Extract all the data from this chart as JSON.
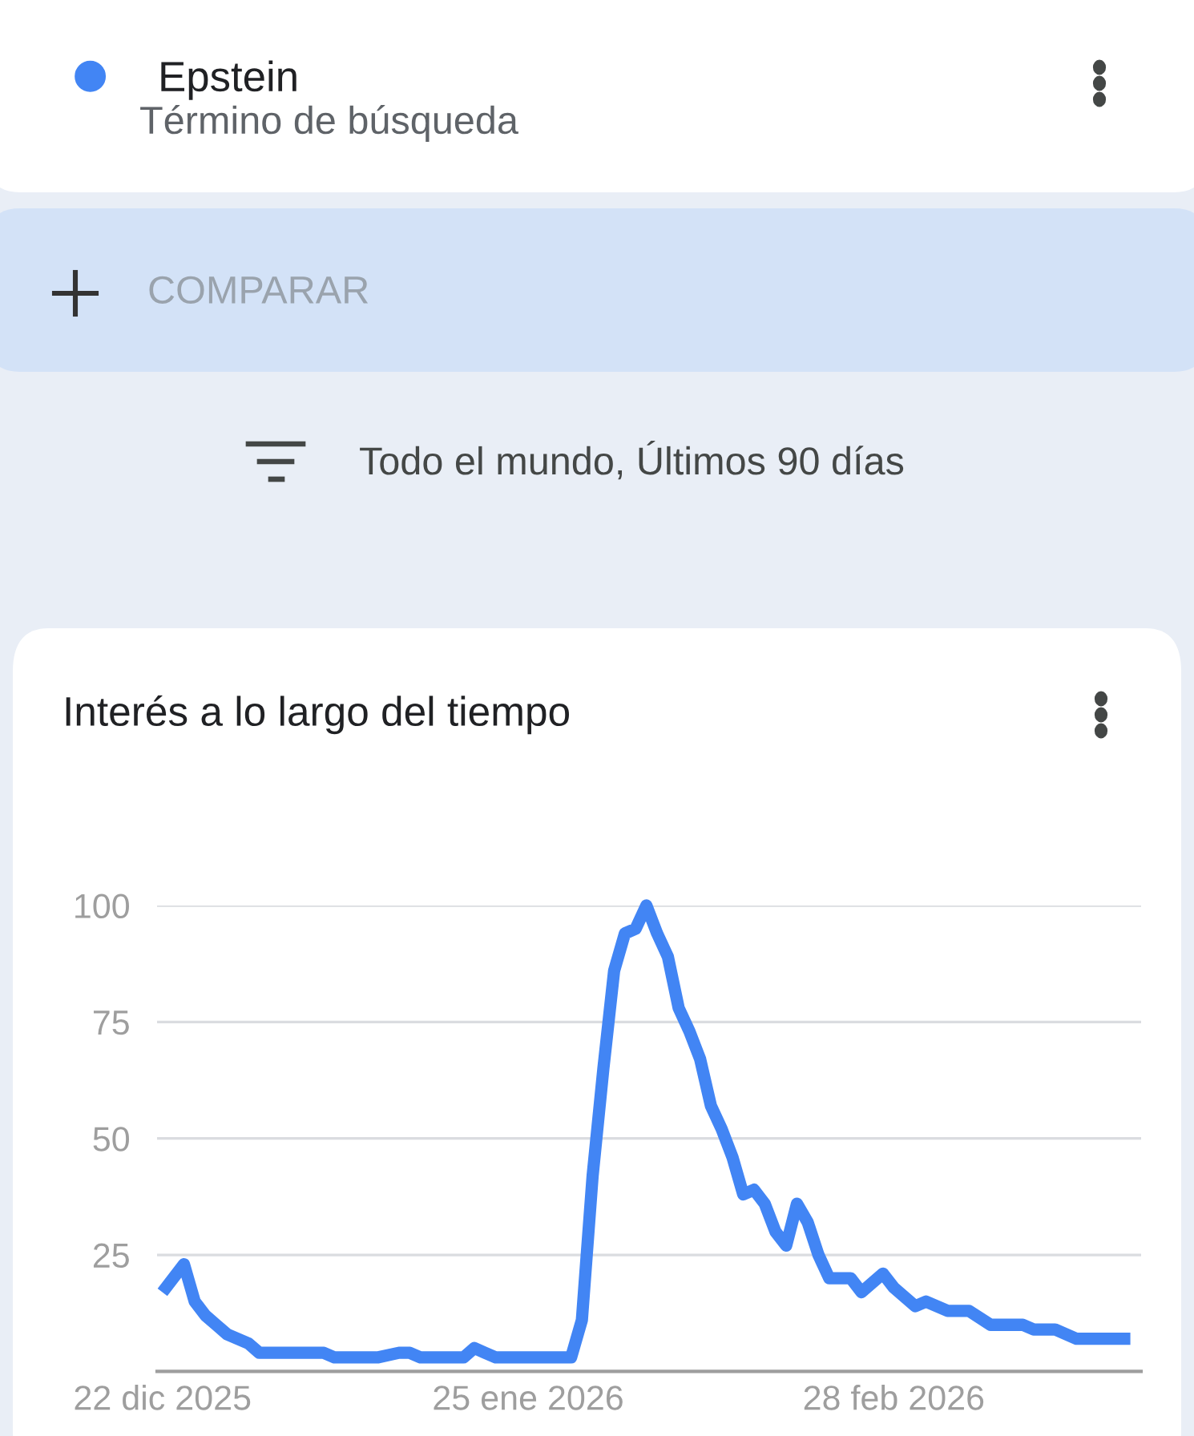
{
  "chart_data": {
    "type": "line",
    "title": "Interés a lo largo del tiempo",
    "annotations": [
      "Término de búsqueda",
      "COMPARAR",
      "Todo el mundo, Últimos 90 días"
    ],
    "legend": "top left",
    "grid": "y",
    "marker": "none",
    "line_style": "solid",
    "xlim": [
      "2025-12-21T12:00",
      "2026-03-23"
    ],
    "xticks": [
      {
        "value": "2025-12-22",
        "label": "22 dic 2025"
      },
      {
        "value": "2026-01-25",
        "label": "25 ene 2026"
      },
      {
        "value": "2026-02-28",
        "label": "28 feb 2026"
      }
    ],
    "ylim": [
      0,
      100
    ],
    "yticks": [
      {
        "value": 0,
        "label": null
      },
      25,
      50,
      75,
      100
    ],
    "series": [
      {
        "name": "Epstein",
        "color": "#4285f4",
        "x": [
          "2025-12-22",
          "2025-12-23",
          "2025-12-24",
          "2025-12-25",
          "2025-12-26",
          "2025-12-27",
          "2025-12-28",
          "2025-12-29",
          "2025-12-30",
          "2025-12-31",
          "2026-01-06",
          "2026-01-07",
          "2026-01-11",
          "2026-01-13",
          "2026-01-14",
          "2026-01-15",
          "2026-01-19",
          "2026-01-20",
          "2026-01-21",
          "2026-01-22",
          "2026-01-29",
          "2026-01-30",
          "2026-01-31",
          "2026-02-01",
          "2026-02-02",
          "2026-02-03",
          "2026-02-04",
          "2026-02-05",
          "2026-02-06",
          "2026-02-07",
          "2026-02-08",
          "2026-02-09",
          "2026-02-10",
          "2026-02-11",
          "2026-02-12",
          "2026-02-13",
          "2026-02-14",
          "2026-02-15",
          "2026-02-16",
          "2026-02-17",
          "2026-02-18",
          "2026-02-19",
          "2026-02-20",
          "2026-02-21",
          "2026-02-22",
          "2026-02-24",
          "2026-02-25",
          "2026-02-27",
          "2026-02-28",
          "2026-03-02",
          "2026-03-03",
          "2026-03-05",
          "2026-03-07",
          "2026-03-09",
          "2026-03-12",
          "2026-03-13",
          "2026-03-15",
          "2026-03-17",
          "2026-03-22"
        ],
        "values": [
          17,
          20,
          23,
          15,
          12,
          10,
          8,
          7,
          6,
          4,
          4,
          3,
          3,
          4,
          4,
          3,
          3,
          5,
          4,
          3,
          3,
          11,
          42,
          65,
          86,
          94,
          95,
          100,
          94,
          89,
          78,
          73,
          67,
          57,
          52,
          46,
          38,
          39,
          36,
          30,
          27,
          36,
          32,
          25,
          20,
          20,
          17,
          21,
          18,
          14,
          15,
          13,
          13,
          10,
          10,
          9,
          9,
          7,
          7
        ]
      }
    ]
  }
}
